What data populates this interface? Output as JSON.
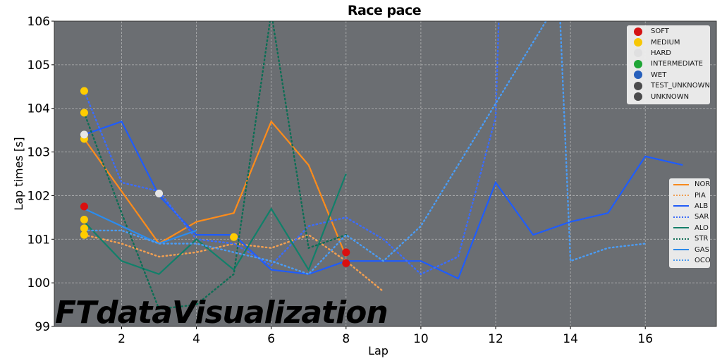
{
  "chart_data": {
    "type": "line",
    "title": "Race pace",
    "xlabel": "Lap",
    "ylabel": "Lap times [s]",
    "xlim": [
      0.2,
      17.9
    ],
    "ylim": [
      99,
      106
    ],
    "xticks": [
      2,
      4,
      6,
      8,
      10,
      12,
      14,
      16
    ],
    "yticks": [
      99,
      100,
      101,
      102,
      103,
      104,
      105,
      106
    ],
    "grid": true,
    "background": "#6b6e72",
    "series": [
      {
        "name": "NOR",
        "color": "#ff8c1a",
        "style": "solid",
        "x": [
          1,
          3,
          4,
          5,
          6,
          7,
          8
        ],
        "y": [
          103.3,
          100.9,
          101.4,
          101.6,
          103.7,
          102.7,
          100.6
        ]
      },
      {
        "name": "PIA",
        "color": "#f5a050",
        "style": "dotted",
        "x": [
          1,
          2,
          3,
          4,
          5,
          6,
          7,
          8,
          9
        ],
        "y": [
          101.1,
          100.9,
          100.6,
          100.7,
          100.9,
          100.8,
          101.1,
          100.5,
          99.8
        ]
      },
      {
        "name": "ALB",
        "color": "#1e5cff",
        "style": "solid",
        "x": [
          1,
          2,
          3,
          4,
          5,
          6,
          7,
          8,
          9,
          10,
          11,
          12,
          13,
          14,
          15,
          16,
          17
        ],
        "y": [
          103.4,
          103.7,
          102.0,
          101.1,
          101.1,
          100.3,
          100.2,
          100.5,
          100.5,
          100.5,
          100.1,
          102.3,
          101.1,
          101.4,
          101.6,
          102.9,
          102.7
        ]
      },
      {
        "name": "SAR",
        "color": "#3a6cff",
        "style": "dotted",
        "x": [
          1,
          2,
          3,
          4,
          5,
          6,
          7,
          8,
          9,
          10,
          11,
          12,
          12.1
        ],
        "y": [
          104.4,
          102.3,
          102.1,
          101.0,
          100.9,
          100.4,
          101.3,
          101.5,
          101.0,
          100.2,
          100.6,
          103.8,
          106.5
        ]
      },
      {
        "name": "ALO",
        "color": "#11806a",
        "style": "solid",
        "x": [
          1,
          2,
          3,
          4,
          5,
          6,
          7,
          8
        ],
        "y": [
          101.4,
          100.5,
          100.2,
          101.0,
          100.3,
          101.7,
          100.3,
          102.5
        ]
      },
      {
        "name": "STR",
        "color": "#0d6e55",
        "style": "dotted",
        "x": [
          1,
          2,
          3,
          4,
          5,
          6,
          7,
          8
        ],
        "y": [
          103.9,
          101.6,
          99.4,
          99.5,
          100.2,
          106.2,
          100.8,
          101.1
        ]
      },
      {
        "name": "GAS",
        "color": "#2a8cf0",
        "style": "solid",
        "x": [
          1,
          2,
          3,
          4
        ],
        "y": [
          101.7,
          101.3,
          100.9,
          101.2
        ]
      },
      {
        "name": "OCO",
        "color": "#4a9cf5",
        "style": "dotted",
        "x": [
          1,
          2,
          3,
          4,
          5,
          6,
          7,
          8,
          9,
          10,
          13.7,
          14,
          15,
          16
        ],
        "y": [
          101.2,
          101.2,
          100.9,
          100.9,
          100.7,
          100.5,
          100.2,
          101.1,
          100.5,
          101.3,
          106.5,
          100.5,
          100.8,
          100.9
        ]
      }
    ],
    "compound_markers": [
      {
        "x": 1,
        "y": 104.4,
        "compound": "MEDIUM"
      },
      {
        "x": 1,
        "y": 103.9,
        "compound": "MEDIUM"
      },
      {
        "x": 1,
        "y": 103.3,
        "compound": "MEDIUM"
      },
      {
        "x": 1,
        "y": 103.4,
        "compound": "HARD"
      },
      {
        "x": 1,
        "y": 101.75,
        "compound": "SOFT"
      },
      {
        "x": 1,
        "y": 101.45,
        "compound": "MEDIUM"
      },
      {
        "x": 1,
        "y": 101.25,
        "compound": "MEDIUM"
      },
      {
        "x": 1,
        "y": 101.1,
        "compound": "MEDIUM"
      },
      {
        "x": 3,
        "y": 102.05,
        "compound": "HARD"
      },
      {
        "x": 5,
        "y": 101.05,
        "compound": "MEDIUM"
      },
      {
        "x": 8,
        "y": 100.7,
        "compound": "SOFT"
      },
      {
        "x": 8,
        "y": 100.45,
        "compound": "SOFT"
      }
    ],
    "compound_legend": [
      {
        "label": "SOFT",
        "color": "#da0f0f"
      },
      {
        "label": "MEDIUM",
        "color": "#ffcc00"
      },
      {
        "label": "HARD",
        "color": "#e6e6e6"
      },
      {
        "label": "INTERMEDIATE",
        "color": "#1aa832"
      },
      {
        "label": "WET",
        "color": "#2460c0"
      },
      {
        "label": "TEST_UNKNOWN",
        "color": "#4a4a4a"
      },
      {
        "label": "UNKNOWN",
        "color": "#4a4a4a"
      }
    ],
    "legend_position": "upper right (compounds), center right (drivers)",
    "watermark": "FTdataVisualization"
  }
}
